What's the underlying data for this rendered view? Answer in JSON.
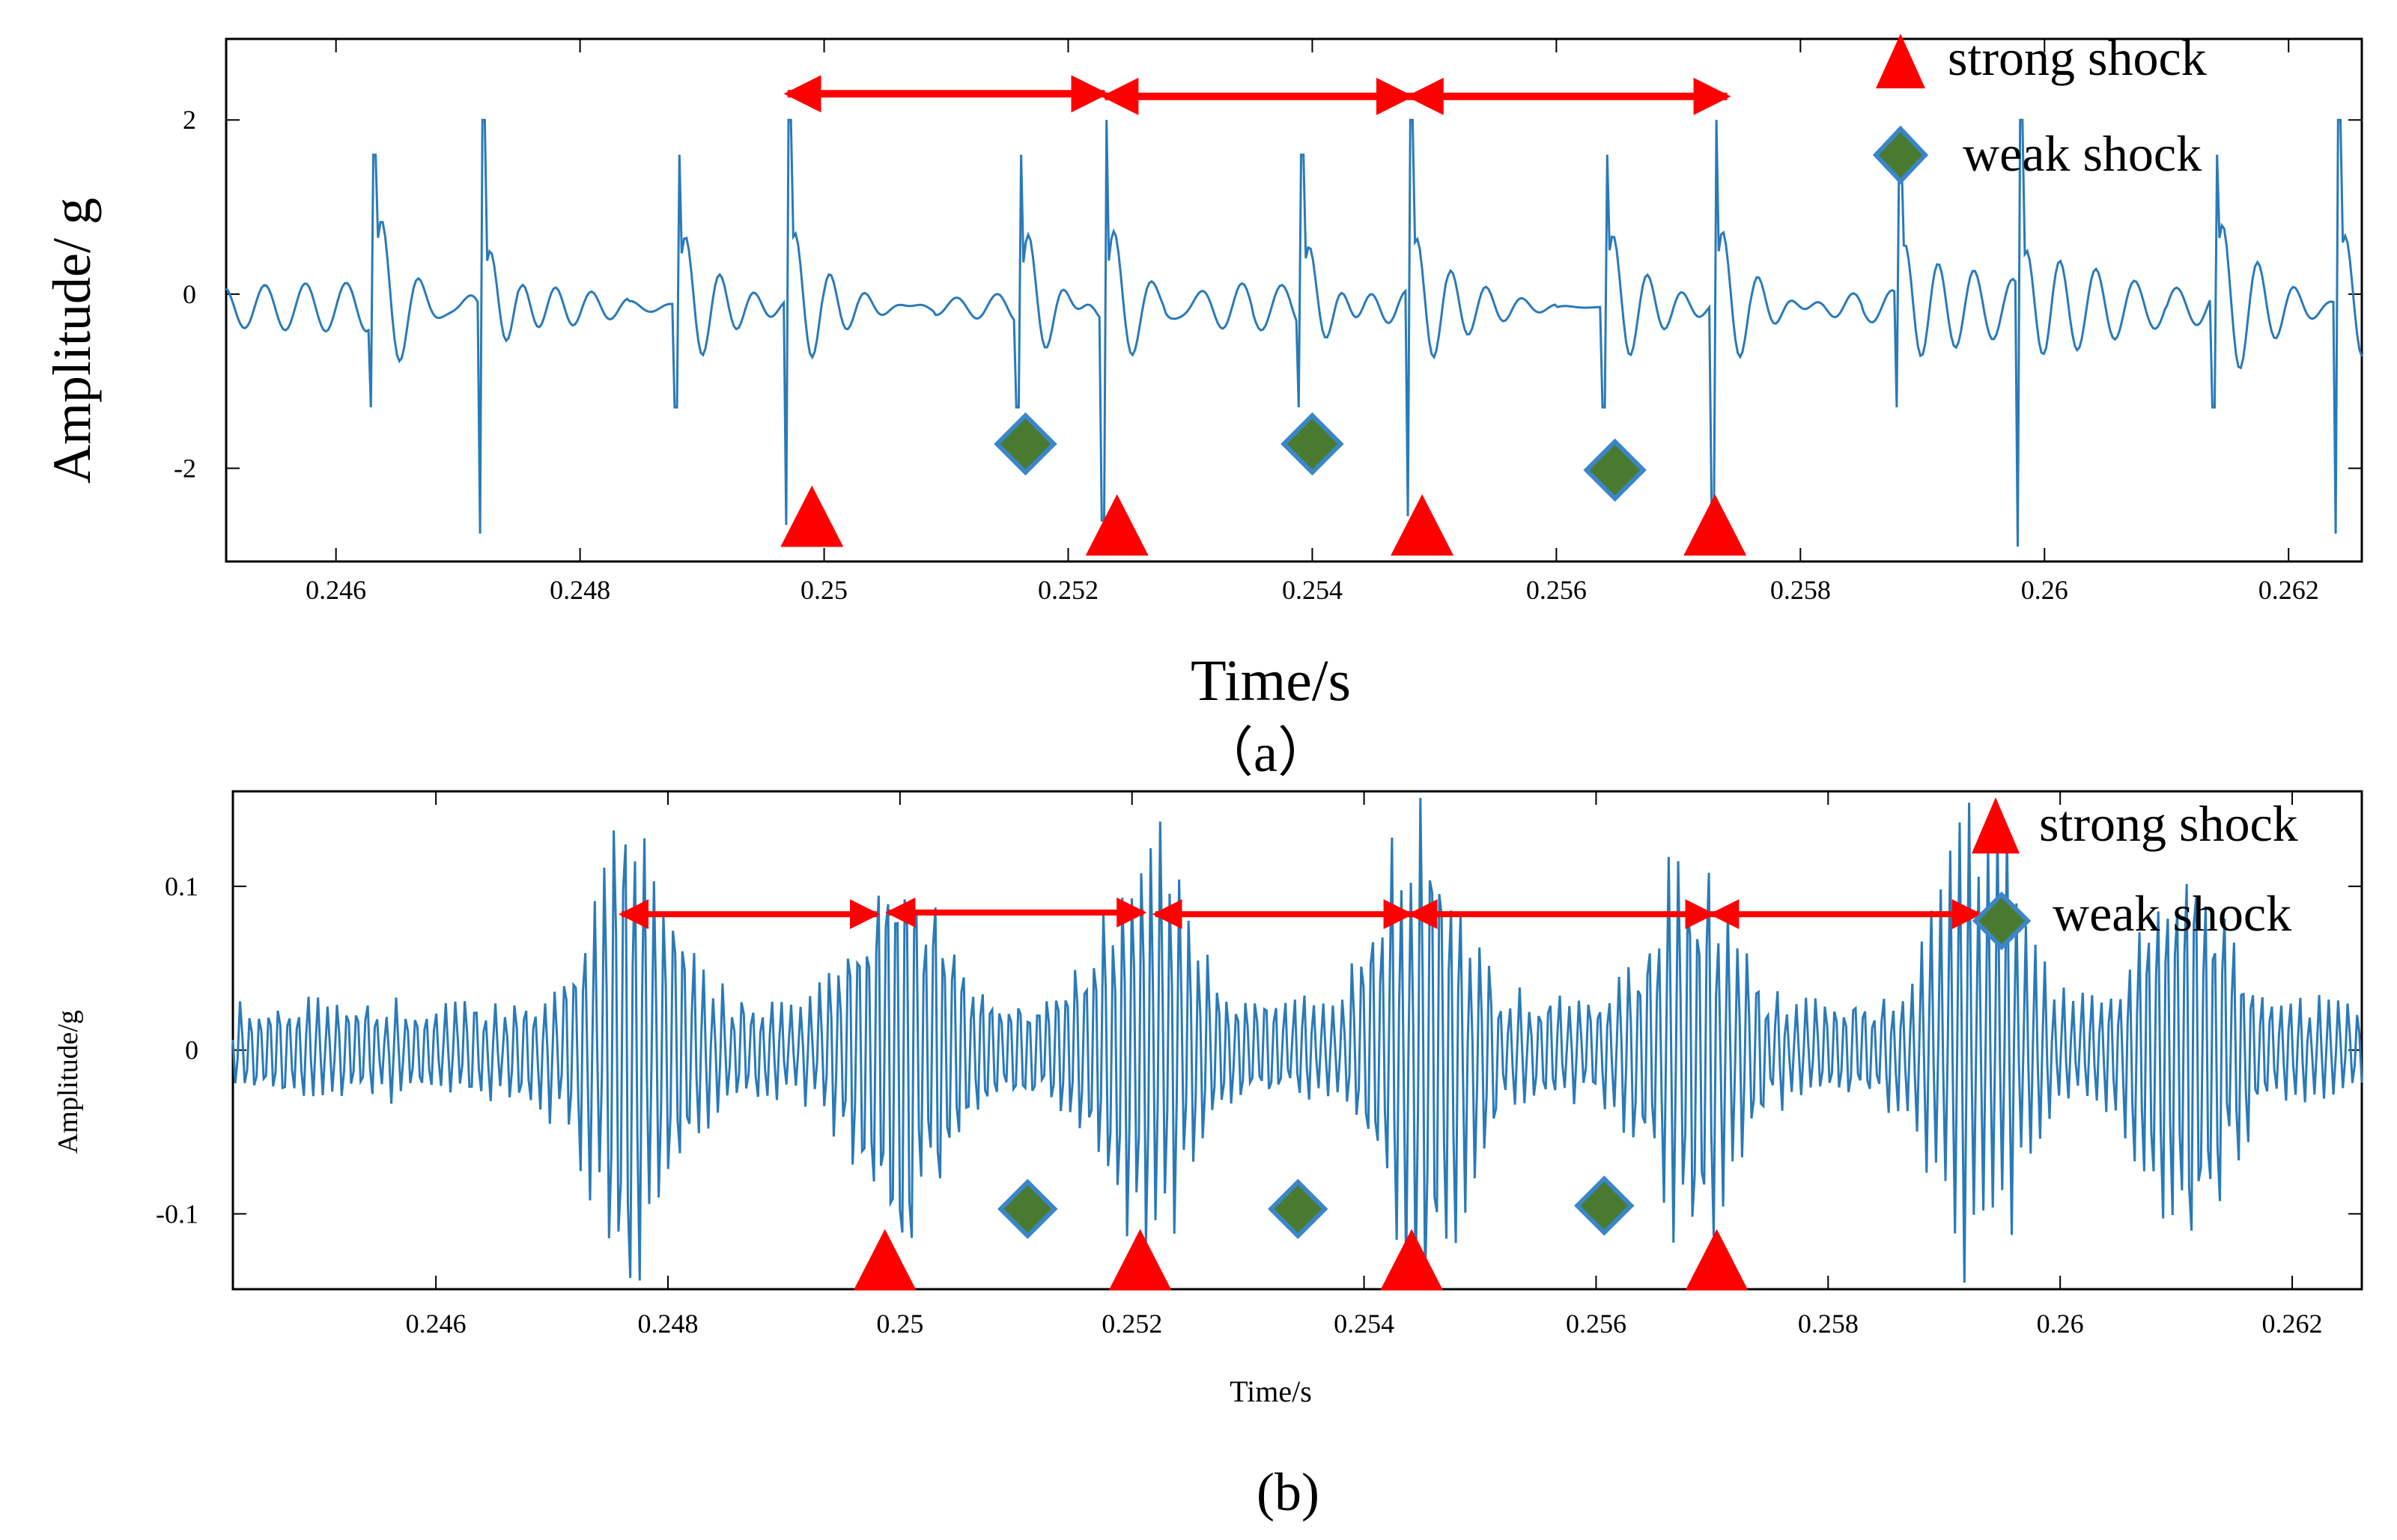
{
  "chart_data": [
    {
      "panel": "a",
      "type": "line",
      "caption": "（a）",
      "xlabel": "Time/s",
      "ylabel": "Amplitude/ g",
      "xlim": [
        0.2451,
        0.2626
      ],
      "ylim": [
        -3.07,
        2.93
      ],
      "xticks": [
        0.246,
        0.248,
        0.25,
        0.252,
        0.254,
        0.256,
        0.258,
        0.26,
        0.262
      ],
      "xtick_labels": [
        "0.246",
        "0.248",
        "0.25",
        "0.252",
        "0.254",
        "0.256",
        "0.258",
        "0.26",
        "0.262"
      ],
      "yticks": [
        -2,
        0,
        2
      ],
      "ytick_labels": [
        "-2",
        "0",
        "2"
      ],
      "line_color": "#2a7ab8",
      "signal": {
        "baseline": -0.15,
        "pulse_times": [
          0.2463,
          0.2472,
          0.2488,
          0.2497,
          0.2516,
          0.2523,
          0.2539,
          0.2548,
          0.2564,
          0.2573,
          0.2588,
          0.2598,
          0.2614,
          0.2624
        ],
        "pulse_amps": [
          1.6,
          2.0,
          1.6,
          2.0,
          1.6,
          2.0,
          1.6,
          2.0,
          1.6,
          2.0,
          1.6,
          2.0,
          1.6,
          2.0
        ],
        "pulse_mins": [
          -1.3,
          -2.75,
          -1.3,
          -2.65,
          -1.3,
          -2.6,
          -1.3,
          -2.55,
          -1.3,
          -2.45,
          -1.3,
          -2.9,
          -1.3,
          -2.75
        ]
      },
      "strong_shock_markers": [
        {
          "x": 0.2499,
          "y": -2.55
        },
        {
          "x": 0.2524,
          "y": -2.65
        },
        {
          "x": 0.2549,
          "y": -2.65
        },
        {
          "x": 0.2573,
          "y": -2.65
        }
      ],
      "weak_shock_markers": [
        {
          "x": 0.25165,
          "y": -1.72
        },
        {
          "x": 0.254,
          "y": -1.72
        },
        {
          "x": 0.25648,
          "y": -2.02
        }
      ],
      "interval_arrows": [
        {
          "x1": 0.2497,
          "x2": 0.2523,
          "y": 2.3
        },
        {
          "x1": 0.2523,
          "x2": 0.2548,
          "y": 2.27
        },
        {
          "x1": 0.2548,
          "x2": 0.2574,
          "y": 2.27
        }
      ],
      "legend": {
        "placement": "top-right",
        "entries": [
          {
            "label": "strong shock",
            "marker": "triangle",
            "color": "#ff0000"
          },
          {
            "label": "weak shock",
            "marker": "diamond",
            "color": "#4a7a30",
            "edge": "#3a86c8"
          }
        ]
      }
    },
    {
      "panel": "b",
      "type": "line",
      "caption": "(b)",
      "xlabel": "Time/s",
      "ylabel": "Amplitude/g",
      "xlim": [
        0.24425,
        0.2626
      ],
      "ylim": [
        -0.146,
        0.158
      ],
      "xticks": [
        0.246,
        0.248,
        0.25,
        0.252,
        0.254,
        0.256,
        0.258,
        0.26,
        0.262
      ],
      "xtick_labels": [
        "0.246",
        "0.248",
        "0.25",
        "0.252",
        "0.254",
        "0.256",
        "0.258",
        "0.26",
        "0.262"
      ],
      "yticks": [
        -0.1,
        0,
        0.1
      ],
      "ytick_labels": [
        "-0.1",
        "0",
        "0.1"
      ],
      "line_color": "#2a7ab8",
      "signal": {
        "baseline": 0.0,
        "envelope_centers": [
          0.2477,
          0.25,
          0.2521,
          0.2545,
          0.2568,
          0.2593,
          0.2611
        ],
        "envelope_amps": [
          0.14,
          0.12,
          0.13,
          0.15,
          0.11,
          0.14,
          0.12
        ]
      },
      "strong_shock_markers": [
        {
          "x": 0.24987,
          "y": -0.128
        },
        {
          "x": 0.25207,
          "y": -0.128
        },
        {
          "x": 0.25441,
          "y": -0.128
        },
        {
          "x": 0.25704,
          "y": -0.128
        }
      ],
      "weak_shock_markers": [
        {
          "x": 0.2511,
          "y": -0.097
        },
        {
          "x": 0.25343,
          "y": -0.097
        },
        {
          "x": 0.25607,
          "y": -0.095
        }
      ],
      "interval_arrows": [
        {
          "x1": 0.2476,
          "x2": 0.2498,
          "y": 0.083
        },
        {
          "x1": 0.2499,
          "x2": 0.2521,
          "y": 0.084
        },
        {
          "x1": 0.2522,
          "x2": 0.2544,
          "y": 0.083
        },
        {
          "x1": 0.2544,
          "x2": 0.257,
          "y": 0.083
        },
        {
          "x1": 0.257,
          "x2": 0.2593,
          "y": 0.083
        }
      ],
      "legend": {
        "placement": "top-right",
        "entries": [
          {
            "label": "strong shock",
            "marker": "triangle",
            "color": "#ff0000"
          },
          {
            "label": "weak shock",
            "marker": "diamond",
            "color": "#4a7a30",
            "edge": "#3a86c8"
          }
        ]
      }
    }
  ]
}
